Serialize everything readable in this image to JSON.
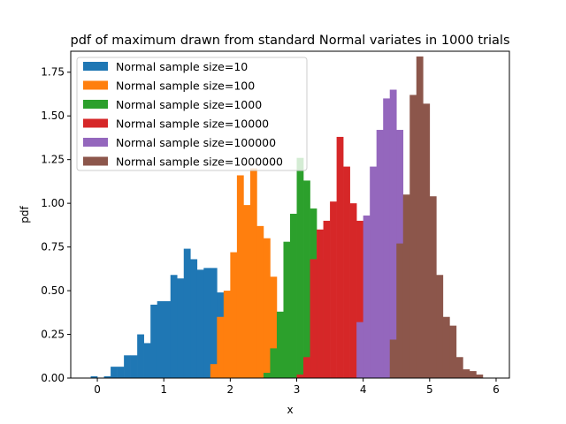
{
  "chart_data": {
    "type": "bar",
    "title": "pdf of maximum drawn from standard Normal variates in 1000 trials",
    "xlabel": "x",
    "ylabel": "pdf",
    "xlim": [
      -0.4,
      6.2
    ],
    "ylim": [
      0,
      1.87
    ],
    "xticks": [
      0,
      1,
      2,
      3,
      4,
      5,
      6
    ],
    "xtick_labels": [
      "0",
      "1",
      "2",
      "3",
      "4",
      "5",
      "6"
    ],
    "yticks": [
      0,
      0.25,
      0.5,
      0.75,
      1.0,
      1.25,
      1.5,
      1.75
    ],
    "ytick_labels": [
      "0.00",
      "0.25",
      "0.50",
      "0.75",
      "1.00",
      "1.25",
      "1.50",
      "1.75"
    ],
    "legend_position": "upper-left",
    "grid": false,
    "series": [
      {
        "name": "Normal sample size=10",
        "color": "#1f77b4",
        "bins": [
          -0.1,
          0.0,
          0.1,
          0.2,
          0.3,
          0.4,
          0.5,
          0.6,
          0.7,
          0.8,
          0.9,
          1.0,
          1.1,
          1.2,
          1.3,
          1.4,
          1.5,
          1.6,
          1.7,
          1.8,
          1.9,
          2.0
        ],
        "values": [
          0.01,
          0.0,
          0.01,
          0.065,
          0.065,
          0.13,
          0.13,
          0.25,
          0.2,
          0.42,
          0.44,
          0.44,
          0.59,
          0.57,
          0.74,
          0.68,
          0.62,
          0.63,
          0.63,
          0.49,
          0.49
        ]
      },
      {
        "name": "Normal sample size=100",
        "color": "#ff7f0e",
        "bins": [
          1.7,
          1.8,
          1.9,
          2.0,
          2.1,
          2.2,
          2.3,
          2.4,
          2.5,
          2.6,
          2.7,
          2.8,
          2.9
        ],
        "values": [
          0.08,
          0.35,
          0.5,
          0.72,
          1.16,
          0.99,
          1.2,
          0.87,
          0.8,
          0.58,
          0.08,
          0.0
        ]
      },
      {
        "name": "Normal sample size=1000",
        "color": "#2ca02c",
        "bins": [
          2.5,
          2.6,
          2.7,
          2.8,
          2.9,
          3.0,
          3.1,
          3.2,
          3.3,
          3.4
        ],
        "values": [
          0.03,
          0.17,
          0.38,
          0.78,
          0.94,
          1.26,
          1.13,
          0.97,
          0.68
        ]
      },
      {
        "name": "Normal sample size=10000",
        "color": "#d62728",
        "bins": [
          3.0,
          3.1,
          3.2,
          3.3,
          3.4,
          3.5,
          3.6,
          3.7,
          3.8,
          3.9,
          4.0,
          4.1,
          4.2
        ],
        "values": [
          0.02,
          0.12,
          0.68,
          0.85,
          0.9,
          1.01,
          1.38,
          1.21,
          1.0,
          0.9,
          0.85,
          0.37
        ]
      },
      {
        "name": "Normal sample size=100000",
        "color": "#9467bd",
        "bins": [
          3.9,
          4.0,
          4.1,
          4.2,
          4.3,
          4.4,
          4.5,
          4.6
        ],
        "values": [
          0.32,
          0.93,
          1.21,
          1.42,
          1.6,
          1.65,
          1.42
        ]
      },
      {
        "name": "Normal sample size=1000000",
        "color": "#8c564b",
        "bins": [
          4.4,
          4.5,
          4.6,
          4.7,
          4.8,
          4.9,
          5.0,
          5.1,
          5.2,
          5.3,
          5.4,
          5.5,
          5.6,
          5.7,
          5.8,
          5.9
        ],
        "values": [
          0.22,
          0.77,
          1.05,
          1.62,
          1.84,
          1.57,
          1.04,
          0.59,
          0.35,
          0.3,
          0.12,
          0.05,
          0.04,
          0.02,
          0.0
        ]
      }
    ]
  }
}
